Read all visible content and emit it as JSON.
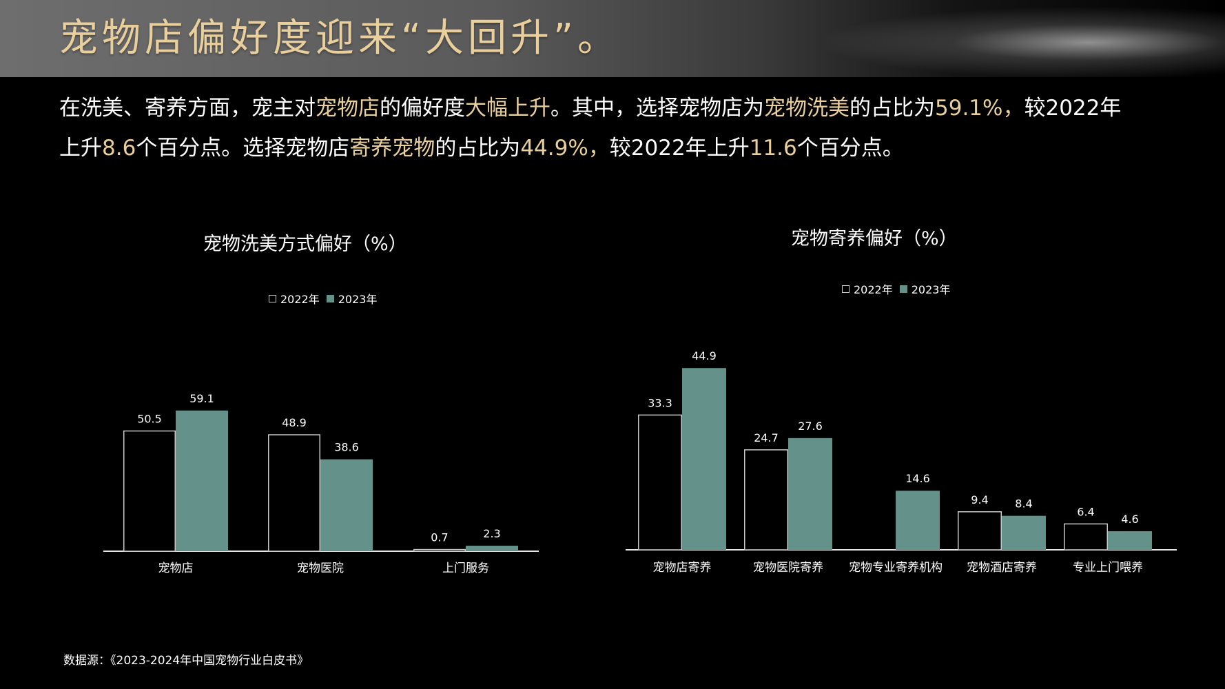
{
  "header": {
    "title": "宠物店偏好度迎来“大回升”。"
  },
  "summary": {
    "p1": "在洗美、寄养方面，宠主对",
    "h1": "宠物店",
    "p2": "的偏好度",
    "h2": "大幅上升",
    "p3": "。其中，选择宠物店为",
    "h3": "宠物洗美",
    "p4": "的占比为",
    "h4": "59.1%，",
    "p5": "较2022年上升",
    "h5": "8.6",
    "p6": "个百分点。选择宠物店",
    "h6": "寄养宠物",
    "p7": "的占比为",
    "h7": "44.9%，",
    "p8": "较2022年上升",
    "h8": "11.6",
    "p9": "个百分点。"
  },
  "colors": {
    "accent_gold": "#e9cf9c",
    "bar_2023": "#64928a",
    "bar_2022_outline": "#c8c8c8",
    "background": "#000000"
  },
  "chart_data": [
    {
      "type": "bar",
      "title": "宠物洗美方式偏好（%）",
      "categories": [
        "宠物店",
        "宠物医院",
        "上门服务"
      ],
      "series": [
        {
          "name": "2022年",
          "values": [
            50.5,
            48.9,
            0.7
          ],
          "style": "outline"
        },
        {
          "name": "2023年",
          "values": [
            59.1,
            38.6,
            2.3
          ],
          "style": "filled"
        }
      ],
      "ylim": [
        0,
        70
      ],
      "grid": false,
      "legend": "top-center"
    },
    {
      "type": "bar",
      "title": "宠物寄养偏好（%）",
      "categories": [
        "宠物店寄养",
        "宠物医院寄养",
        "宠物专业寄养机构",
        "宠物酒店寄养",
        "专业上门喂养"
      ],
      "series": [
        {
          "name": "2022年",
          "values": [
            33.3,
            24.7,
            null,
            9.4,
            6.4
          ],
          "style": "outline"
        },
        {
          "name": "2023年",
          "values": [
            44.9,
            27.6,
            14.6,
            8.4,
            4.6
          ],
          "style": "filled"
        }
      ],
      "ylim": [
        0,
        55
      ],
      "grid": false,
      "legend": "top-center"
    }
  ],
  "footer": {
    "source": "数据源：《2023-2024年中国宠物行业白皮书》"
  }
}
